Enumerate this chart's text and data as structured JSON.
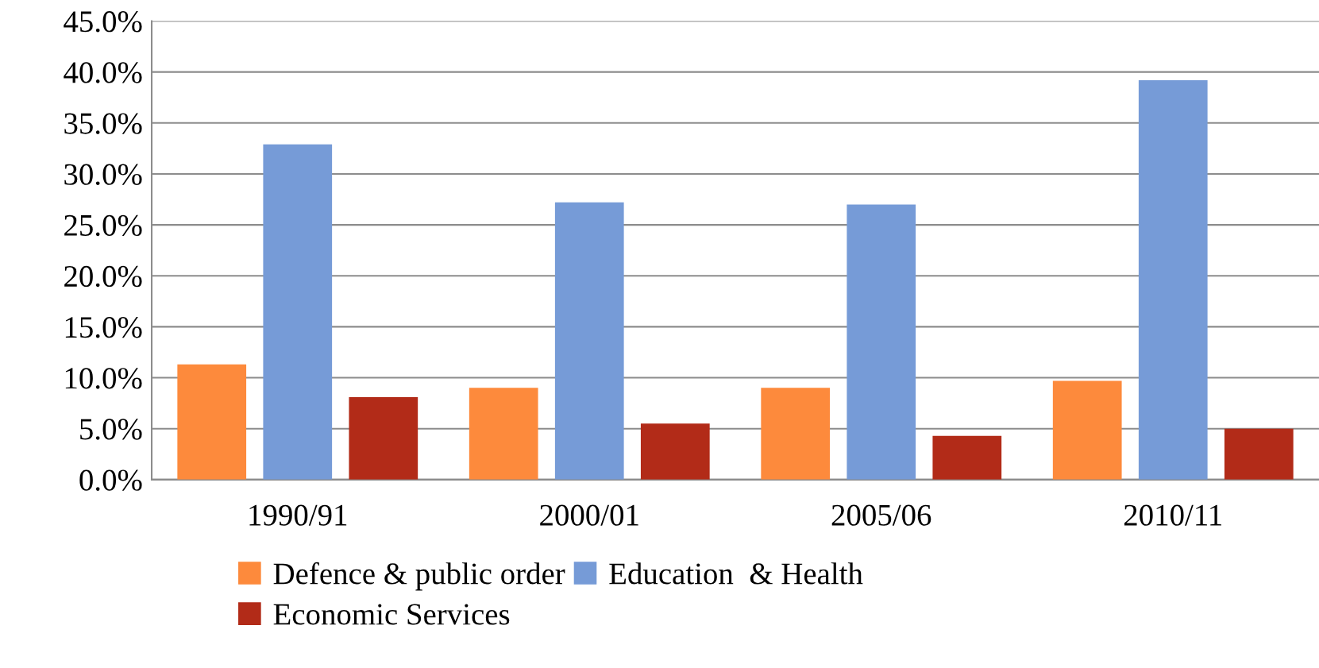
{
  "chart_data": {
    "type": "bar",
    "categories": [
      "1990/91",
      "2000/01",
      "2005/06",
      "2010/11"
    ],
    "series": [
      {
        "name": "Defence & public order",
        "color": "#fd8a3c",
        "values": [
          11.3,
          9.0,
          9.0,
          9.7
        ]
      },
      {
        "name": "Education  & Health",
        "color": "#769bd7",
        "values": [
          32.9,
          27.2,
          27.0,
          39.2
        ]
      },
      {
        "name": "Economic Services",
        "color": "#b22b18",
        "values": [
          8.1,
          5.5,
          4.3,
          5.0
        ]
      }
    ],
    "ylim": [
      0,
      45
    ],
    "yticks": [
      {
        "value": 0,
        "label": "0.0%"
      },
      {
        "value": 5,
        "label": "5.0%"
      },
      {
        "value": 10,
        "label": "10.0%"
      },
      {
        "value": 15,
        "label": "15.0%"
      },
      {
        "value": 20,
        "label": "20.0%"
      },
      {
        "value": 25,
        "label": "25.0%"
      },
      {
        "value": 30,
        "label": "30.0%"
      },
      {
        "value": 35,
        "label": "35.0%"
      },
      {
        "value": 40,
        "label": "40.0%"
      },
      {
        "value": 45,
        "label": "45.0%"
      }
    ],
    "grid": "y",
    "legend": "bottom"
  }
}
